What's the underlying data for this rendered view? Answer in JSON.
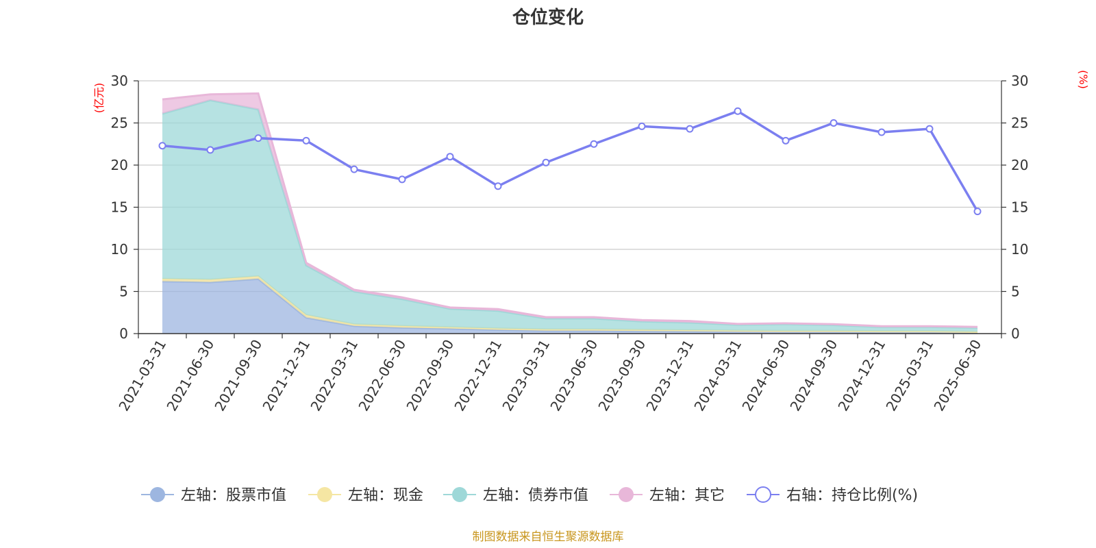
{
  "chart_data": {
    "type": "area",
    "title": "仓位变化",
    "categories": [
      "2021-03-31",
      "2021-06-30",
      "2021-09-30",
      "2021-12-31",
      "2022-03-31",
      "2022-06-30",
      "2022-09-30",
      "2022-12-31",
      "2023-03-31",
      "2023-06-30",
      "2023-09-30",
      "2023-12-31",
      "2024-03-31",
      "2024-06-30",
      "2024-09-30",
      "2024-12-31",
      "2025-03-31",
      "2025-06-30"
    ],
    "left_axis": {
      "unit": "(亿元)",
      "ylim": [
        0,
        30
      ],
      "ticks": [
        0,
        5,
        10,
        15,
        20,
        25,
        30
      ]
    },
    "right_axis": {
      "unit": "(%)",
      "ylim": [
        0,
        30
      ],
      "ticks": [
        0,
        5,
        10,
        15,
        20,
        25,
        30
      ]
    },
    "stacked": true,
    "grid": true,
    "legend_position": "bottom",
    "series": [
      {
        "name": "左轴：股票市值",
        "axis": "left",
        "kind": "area",
        "color": "#9db6e0",
        "values": [
          6.2,
          6.1,
          6.5,
          1.9,
          0.9,
          0.7,
          0.6,
          0.45,
          0.35,
          0.35,
          0.3,
          0.28,
          0.25,
          0.22,
          0.22,
          0.18,
          0.18,
          0.1
        ]
      },
      {
        "name": "左轴：现金",
        "axis": "left",
        "kind": "area",
        "color": "#f5e6a3",
        "values": [
          0.3,
          0.3,
          0.3,
          0.3,
          0.2,
          0.2,
          0.15,
          0.15,
          0.15,
          0.15,
          0.15,
          0.12,
          0.1,
          0.1,
          0.1,
          0.1,
          0.1,
          0.1
        ]
      },
      {
        "name": "左轴：债券市值",
        "axis": "left",
        "kind": "area",
        "color": "#9ed8d8",
        "values": [
          19.6,
          21.3,
          19.8,
          5.9,
          3.9,
          3.2,
          2.2,
          2.1,
          1.3,
          1.3,
          1.0,
          0.9,
          0.7,
          0.8,
          0.7,
          0.5,
          0.5,
          0.5
        ]
      },
      {
        "name": "左轴：其它",
        "axis": "left",
        "kind": "area",
        "color": "#e8b7d9",
        "values": [
          1.7,
          0.7,
          1.9,
          0.3,
          0.2,
          0.2,
          0.15,
          0.2,
          0.15,
          0.15,
          0.15,
          0.2,
          0.1,
          0.1,
          0.1,
          0.1,
          0.1,
          0.1
        ]
      },
      {
        "name": "右轴：持仓比例(%)",
        "axis": "right",
        "kind": "line",
        "color": "#7b7ff0",
        "values": [
          22.3,
          21.8,
          23.2,
          22.9,
          19.5,
          18.3,
          21.0,
          17.5,
          20.3,
          22.5,
          24.6,
          24.3,
          26.4,
          22.9,
          25.0,
          23.9,
          24.3,
          14.5
        ]
      }
    ]
  },
  "footer": {
    "source": "制图数据来自恒生聚源数据库"
  }
}
